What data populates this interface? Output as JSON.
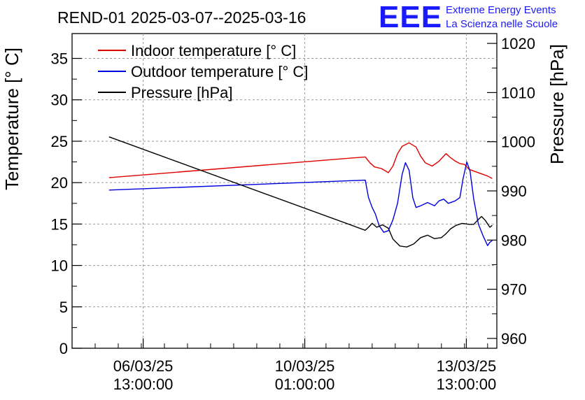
{
  "chart_data": {
    "type": "line",
    "title": "REND-01 2025-03-07--2025-03-16",
    "logo": {
      "text": "EEE",
      "line1": "Extreme Energy Events",
      "line2": "La Scienza nelle Scuole",
      "color": "#1a1aff"
    },
    "ylabel": "Temperature [° C]",
    "y2label": "Pressure [hPa]",
    "ylim": [
      0,
      38
    ],
    "y2lim": [
      958,
      1022
    ],
    "yticks": [
      "0",
      "5",
      "10",
      "15",
      "20",
      "25",
      "30",
      "35"
    ],
    "y2ticks": [
      "960",
      "970",
      "980",
      "990",
      "1000",
      "1010",
      "1020"
    ],
    "xlim_days": [
      5.0,
      14.2
    ],
    "xticks": [
      {
        "line1": "06/03/25",
        "line2": "13:00:00",
        "day": 6.54
      },
      {
        "line1": "10/03/25",
        "line2": "01:00:00",
        "day": 10.04
      },
      {
        "line1": "13/03/25",
        "line2": "13:00:00",
        "day": 13.54
      }
    ],
    "legend": [
      {
        "label": "Indoor temperature [° C]",
        "color": "#e00000"
      },
      {
        "label": "Outdoor temperature [° C]",
        "color": "#0000dd"
      },
      {
        "label": "Pressure [hPa]",
        "color": "#000000"
      }
    ],
    "series": [
      {
        "name": "Indoor temperature [° C]",
        "axis": "left",
        "color": "#e00000",
        "x": [
          5.8,
          11.35,
          11.45,
          11.55,
          11.7,
          11.85,
          11.95,
          12.05,
          12.15,
          12.3,
          12.45,
          12.55,
          12.65,
          12.8,
          12.95,
          13.1,
          13.2,
          13.3,
          13.4,
          13.5,
          13.6,
          13.75,
          13.9,
          14.0,
          14.1
        ],
        "values": [
          20.6,
          23.1,
          22.4,
          21.9,
          21.7,
          21.2,
          22.0,
          23.5,
          24.4,
          24.8,
          24.3,
          23.2,
          22.4,
          22.0,
          22.6,
          23.5,
          23.0,
          22.6,
          22.3,
          22.2,
          21.6,
          21.3,
          21.0,
          20.8,
          20.5
        ]
      },
      {
        "name": "Outdoor temperature [° C]",
        "axis": "left",
        "color": "#0000dd",
        "x": [
          5.8,
          11.35,
          11.42,
          11.5,
          11.57,
          11.65,
          11.75,
          11.85,
          11.95,
          12.05,
          12.15,
          12.22,
          12.3,
          12.38,
          12.45,
          12.55,
          12.7,
          12.85,
          12.95,
          13.05,
          13.15,
          13.3,
          13.4,
          13.47,
          13.55,
          13.62,
          13.7,
          13.8,
          13.9,
          14.0,
          14.05,
          14.1
        ],
        "values": [
          19.1,
          20.3,
          18.2,
          17.0,
          16.2,
          14.8,
          14.0,
          14.2,
          15.5,
          17.5,
          21.0,
          22.4,
          21.5,
          18.2,
          17.0,
          17.2,
          17.6,
          17.2,
          17.8,
          18.0,
          17.5,
          17.8,
          18.2,
          20.5,
          22.5,
          21.4,
          18.0,
          15.0,
          13.6,
          12.4,
          12.8,
          13.0
        ]
      },
      {
        "name": "Pressure [hPa]",
        "axis": "right",
        "color": "#000000",
        "x": [
          5.8,
          11.35,
          11.42,
          11.5,
          11.6,
          11.72,
          11.85,
          11.95,
          12.1,
          12.25,
          12.4,
          12.55,
          12.7,
          12.85,
          13.0,
          13.1,
          13.2,
          13.32,
          13.45,
          13.6,
          13.7,
          13.8,
          13.87,
          13.95,
          14.05,
          14.1
        ],
        "values": [
          1001.0,
          982.0,
          982.6,
          983.4,
          982.6,
          983.1,
          982.4,
          980.2,
          978.8,
          978.6,
          979.2,
          980.5,
          981.0,
          980.3,
          980.5,
          981.3,
          982.3,
          983.0,
          983.4,
          983.2,
          983.2,
          984.2,
          984.8,
          984.0,
          982.6,
          983.0
        ]
      }
    ]
  }
}
